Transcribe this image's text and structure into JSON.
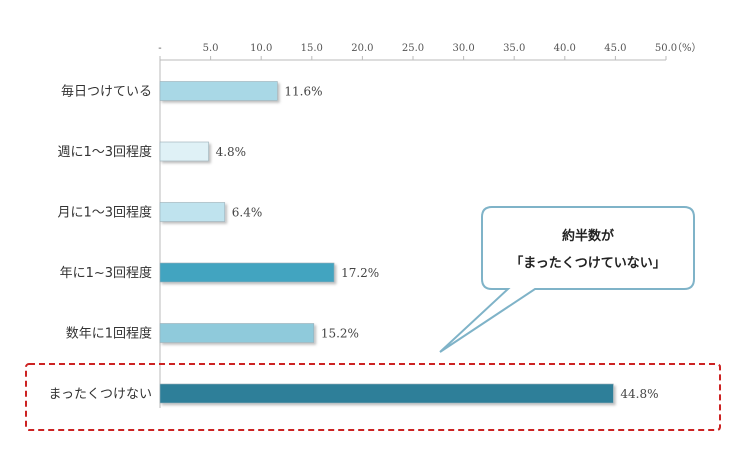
{
  "chart_data": {
    "type": "bar",
    "orientation": "horizontal",
    "categories": [
      "毎日つけている",
      "週に1～3回程度",
      "月に1～3回程度",
      "年に1~3回程度",
      "数年に1回程度",
      "まったくつけない"
    ],
    "values": [
      11.6,
      4.8,
      6.4,
      17.2,
      15.2,
      44.8
    ],
    "value_labels": [
      "11.6%",
      "4.8%",
      "6.4%",
      "17.2%",
      "15.2%",
      "44.8%"
    ],
    "bar_colors": [
      "#a9d8e6",
      "#dff1f6",
      "#bfe3ee",
      "#43a4c0",
      "#8fcadb",
      "#2d7f99"
    ],
    "xlim": [
      0,
      50
    ],
    "x_ticks": [
      0,
      5,
      10,
      15,
      20,
      25,
      30,
      35,
      40,
      45,
      50
    ],
    "x_tick_labels": [
      "-",
      "5.0",
      "10.0",
      "15.0",
      "20.0",
      "25.0",
      "30.0",
      "35.0",
      "40.0",
      "45.0",
      "50.0"
    ],
    "x_unit": "（%）",
    "title": "",
    "xlabel": "",
    "ylabel": "",
    "grid": false,
    "highlight": {
      "category": "まったくつけない",
      "style": "dashed-box",
      "color": "#cc2222"
    },
    "callout": {
      "line1": "約半数が",
      "line2": "「まったくつけていない」",
      "border_color": "#7fb3c8"
    }
  }
}
